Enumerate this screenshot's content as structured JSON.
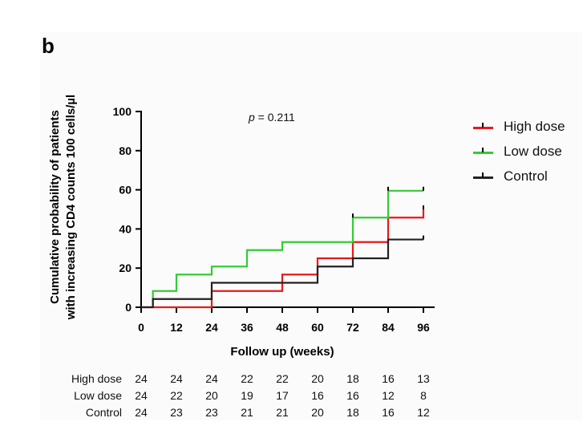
{
  "panel_label": "b",
  "p_value_prefix": "p",
  "p_value_rest": " = 0.211",
  "chart_data": {
    "type": "line",
    "subtype": "kaplan-meier step (cumulative incidence)",
    "title": "",
    "xlabel": "Follow up (weeks)",
    "ylabel_line1": "Cumulative probability of patients",
    "ylabel_line2": "with increasing CD4 counts 100 cells/µl",
    "xlim": [
      0,
      96
    ],
    "ylim": [
      0,
      100
    ],
    "xticks": [
      0,
      12,
      24,
      36,
      48,
      60,
      72,
      84,
      96
    ],
    "yticks": [
      0,
      20,
      40,
      60,
      80,
      100
    ],
    "legend_position": "right",
    "series": [
      {
        "name": "High dose",
        "color": "#e8191b",
        "steps": [
          [
            0,
            0
          ],
          [
            24,
            8.3
          ],
          [
            48,
            16.7
          ],
          [
            60,
            25
          ],
          [
            72,
            33.3
          ],
          [
            84,
            45.8
          ],
          [
            96,
            50
          ]
        ],
        "end": 96,
        "censor": [
          96
        ]
      },
      {
        "name": "Low dose",
        "color": "#33cc33",
        "steps": [
          [
            4,
            0
          ],
          [
            4,
            8.3
          ],
          [
            12,
            16.7
          ],
          [
            24,
            20.8
          ],
          [
            36,
            29.2
          ],
          [
            48,
            33.3
          ],
          [
            72,
            45.8
          ],
          [
            84,
            59.5
          ]
        ],
        "end": 96,
        "censor": [
          72,
          84,
          96
        ]
      },
      {
        "name": "Control",
        "color": "#222222",
        "steps": [
          [
            0,
            0
          ],
          [
            4,
            4.2
          ],
          [
            24,
            12.5
          ],
          [
            60,
            20.8
          ],
          [
            72,
            25
          ],
          [
            84,
            34.6
          ]
        ],
        "end": 96,
        "censor": [
          96
        ]
      }
    ],
    "at_risk": {
      "timepoints": [
        0,
        12,
        24,
        36,
        48,
        60,
        72,
        84,
        96
      ],
      "rows": [
        {
          "label": "High dose",
          "values": [
            "24",
            "24",
            "24",
            "22",
            "22",
            "20",
            "18",
            "16",
            "13"
          ]
        },
        {
          "label": "Low dose",
          "values": [
            "24",
            "22",
            "20",
            "19",
            "17",
            "16",
            "16",
            "12",
            "8"
          ]
        },
        {
          "label": "Control",
          "values": [
            "24",
            "23",
            "23",
            "21",
            "21",
            "20",
            "18",
            "16",
            "12"
          ]
        }
      ]
    }
  }
}
